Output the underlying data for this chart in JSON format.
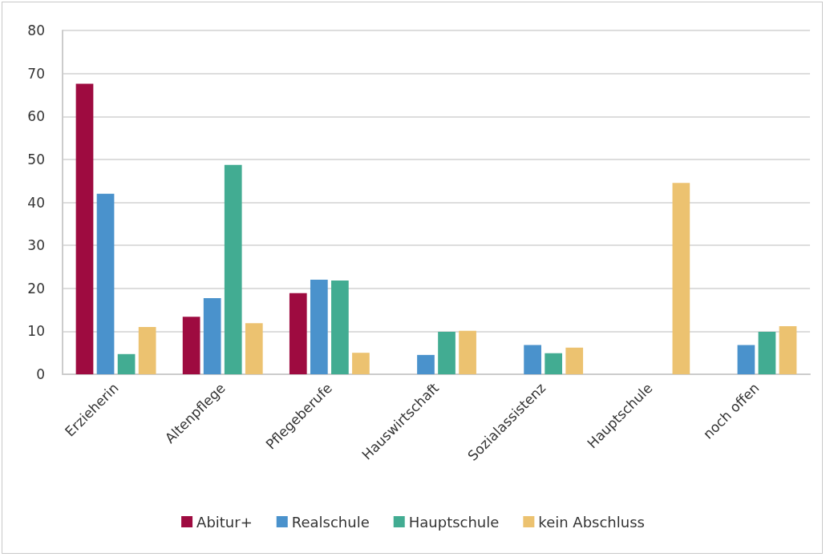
{
  "chart_data": {
    "type": "bar",
    "categories": [
      "Erzieherin",
      "Altenpflege",
      "Pflegeberufe",
      "Hauswirtschaft",
      "Sozialassistenz",
      "Hauptschule",
      "noch offen"
    ],
    "series": [
      {
        "name": "Abitur+",
        "color": "#9e0b40",
        "values": [
          67.6,
          13.4,
          18.9,
          0,
          0,
          0,
          0
        ]
      },
      {
        "name": "Realschule",
        "color": "#4a92cc",
        "values": [
          42,
          17.7,
          22,
          4.5,
          6.8,
          0,
          6.8
        ]
      },
      {
        "name": "Hauptschule",
        "color": "#42ac92",
        "values": [
          4.7,
          48.7,
          21.8,
          9.9,
          4.9,
          0,
          9.9
        ]
      },
      {
        "name": "kein Abschluss",
        "color": "#ecc270",
        "values": [
          11,
          11.9,
          5,
          10.1,
          6.2,
          44.5,
          11.2
        ]
      }
    ],
    "ylim": [
      0,
      80
    ],
    "yticks": [
      0,
      10,
      20,
      30,
      40,
      50,
      60,
      70,
      80
    ],
    "grid": "y",
    "legend": "bottom"
  }
}
